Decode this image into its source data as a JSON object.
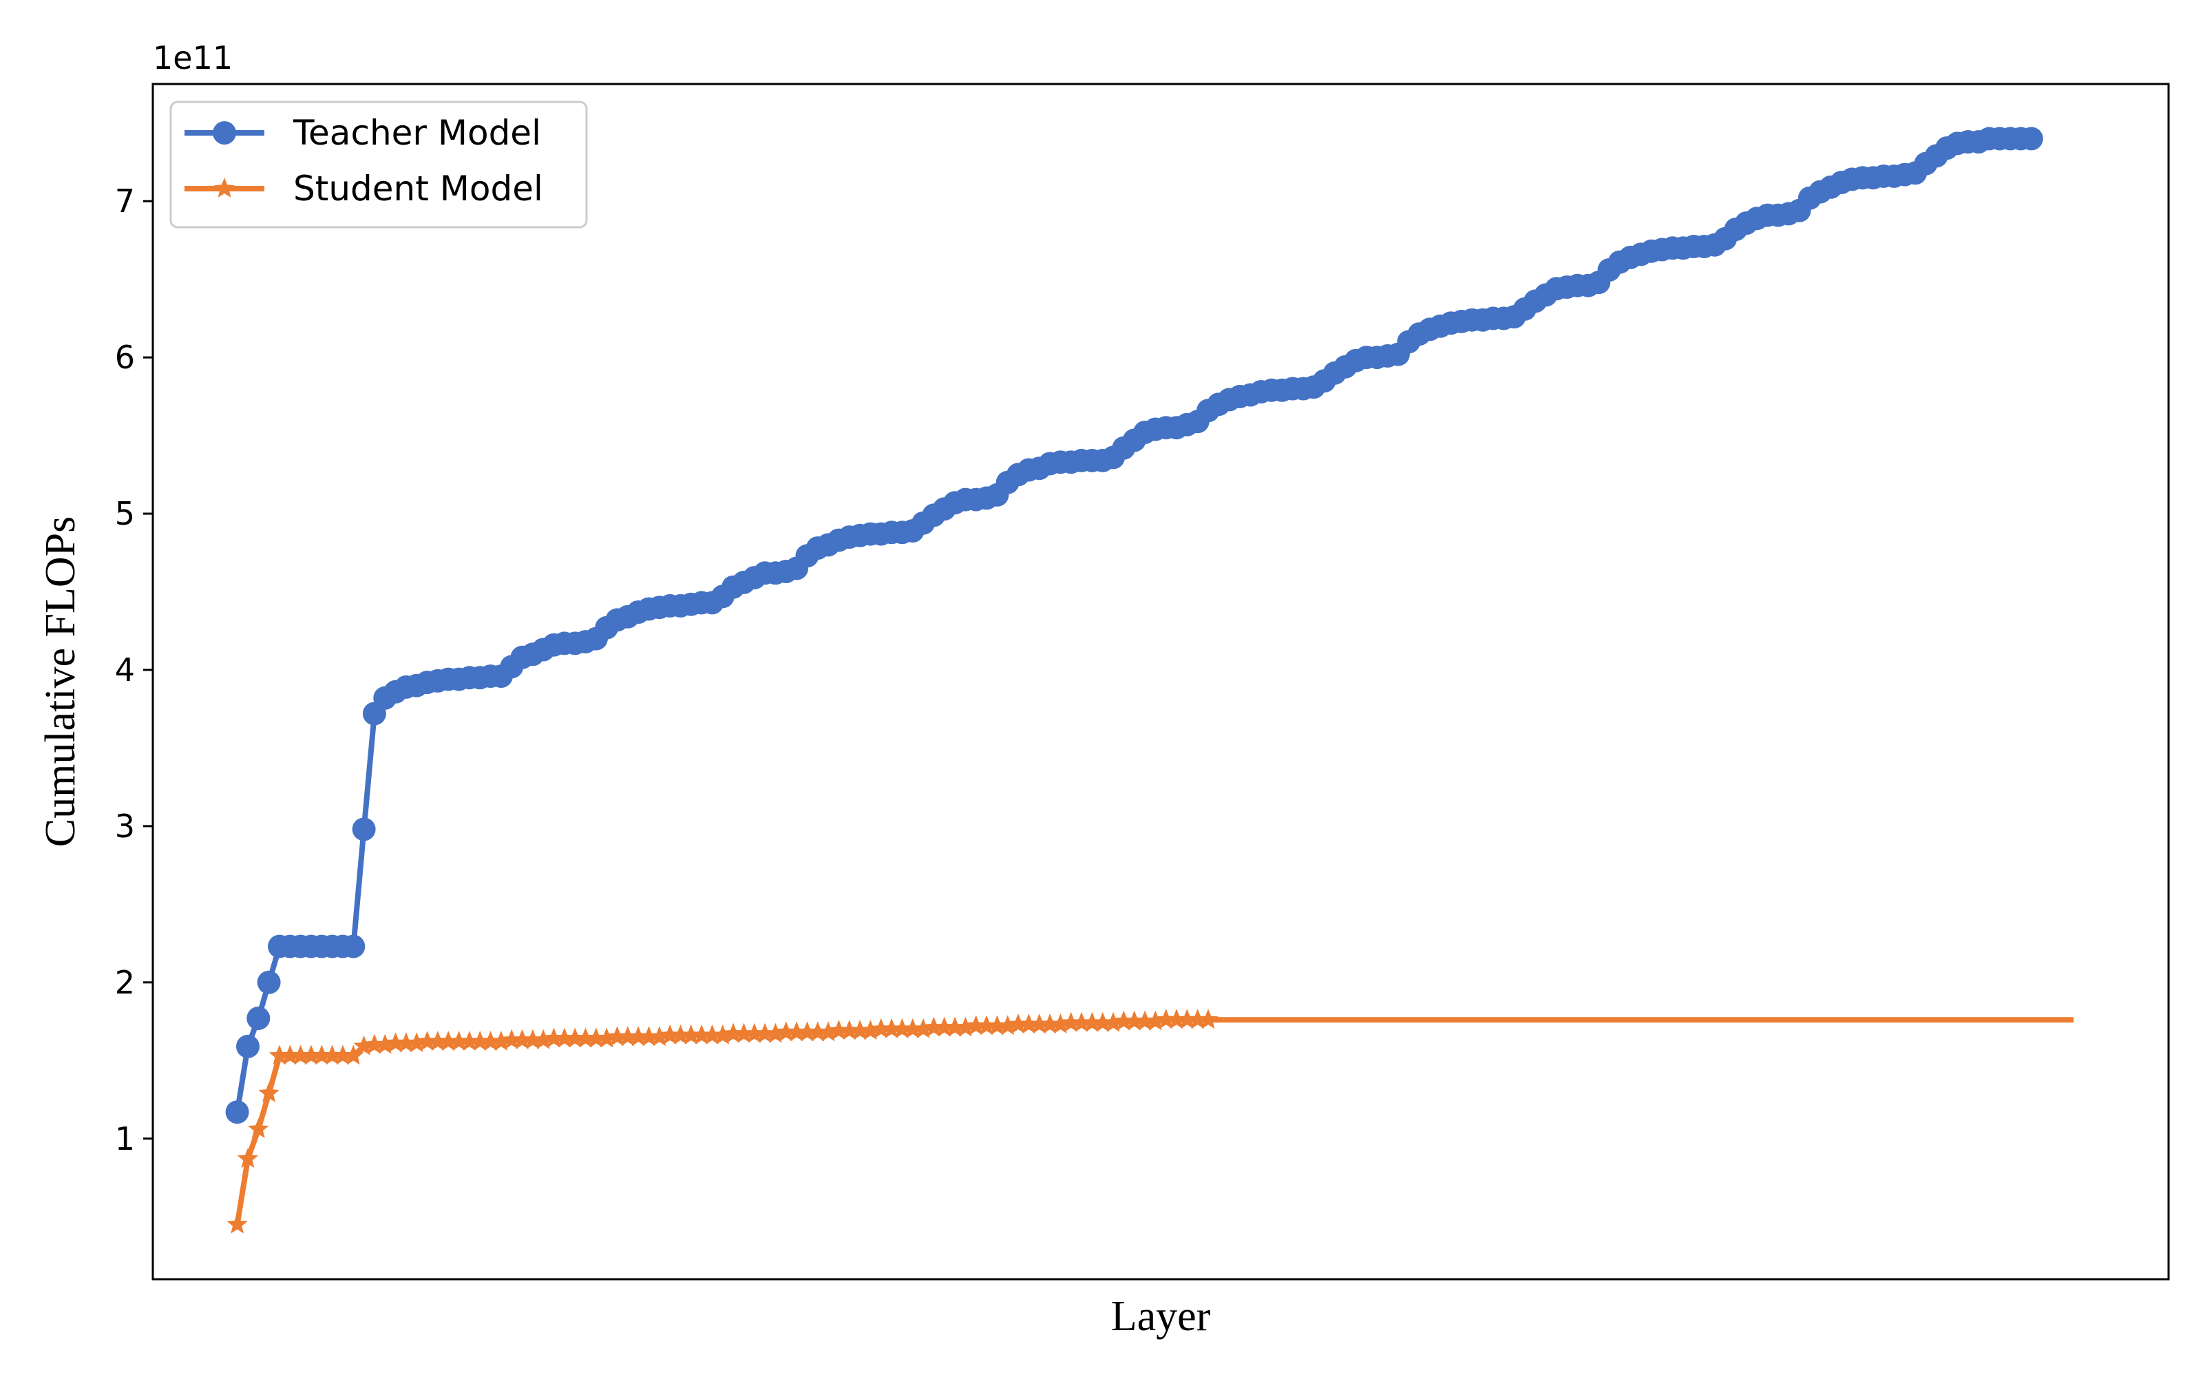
{
  "chart_data": {
    "type": "line",
    "title": "",
    "xlabel": "Layer",
    "ylabel": "Cumulative FLOPs",
    "y_offset_label": "1e11",
    "x_ticks_shown": false,
    "y_ticks": [
      1,
      2,
      3,
      4,
      5,
      6,
      7
    ],
    "ylim": [
      0.1,
      7.75
    ],
    "xlim": [
      -8,
      183
    ],
    "grid": false,
    "legend_position": "upper left",
    "series": [
      {
        "name": "Teacher Model",
        "color": "#4472C4",
        "marker": "circle",
        "values": [
          1.17,
          1.59,
          1.77,
          2.0,
          2.23,
          2.23,
          2.23,
          2.23,
          2.23,
          2.23,
          2.23,
          2.23,
          2.98,
          3.72,
          3.82,
          3.86,
          3.89,
          3.9,
          3.92,
          3.93,
          3.94,
          3.94,
          3.95,
          3.95,
          3.96,
          3.96,
          4.02,
          4.08,
          4.1,
          4.13,
          4.16,
          4.17,
          4.17,
          4.18,
          4.2,
          4.27,
          4.32,
          4.34,
          4.37,
          4.39,
          4.4,
          4.41,
          4.41,
          4.42,
          4.43,
          4.43,
          4.47,
          4.53,
          4.56,
          4.59,
          4.62,
          4.62,
          4.63,
          4.65,
          4.73,
          4.78,
          4.8,
          4.83,
          4.85,
          4.86,
          4.87,
          4.87,
          4.88,
          4.88,
          4.89,
          4.94,
          4.99,
          5.03,
          5.07,
          5.09,
          5.09,
          5.1,
          5.12,
          5.2,
          5.25,
          5.28,
          5.29,
          5.32,
          5.33,
          5.33,
          5.34,
          5.34,
          5.34,
          5.36,
          5.42,
          5.47,
          5.52,
          5.54,
          5.55,
          5.55,
          5.57,
          5.59,
          5.66,
          5.7,
          5.73,
          5.75,
          5.76,
          5.78,
          5.79,
          5.79,
          5.8,
          5.8,
          5.81,
          5.85,
          5.9,
          5.94,
          5.98,
          6.0,
          6.0,
          6.01,
          6.02,
          6.1,
          6.15,
          6.18,
          6.2,
          6.22,
          6.23,
          6.24,
          6.24,
          6.25,
          6.25,
          6.26,
          6.31,
          6.36,
          6.4,
          6.44,
          6.45,
          6.46,
          6.46,
          6.48,
          6.56,
          6.61,
          6.64,
          6.66,
          6.68,
          6.69,
          6.7,
          6.7,
          6.71,
          6.71,
          6.72,
          6.76,
          6.82,
          6.86,
          6.89,
          6.91,
          6.91,
          6.92,
          6.94,
          7.02,
          7.06,
          7.09,
          7.12,
          7.14,
          7.15,
          7.15,
          7.16,
          7.16,
          7.17,
          7.18,
          7.24,
          7.29,
          7.34,
          7.37,
          7.38,
          7.38,
          7.4,
          7.4,
          7.4,
          7.4,
          7.4
        ]
      },
      {
        "name": "Student Model",
        "color": "#ED7D31",
        "marker": "star",
        "values": [
          0.45,
          0.87,
          1.06,
          1.29,
          1.53,
          1.53,
          1.53,
          1.53,
          1.53,
          1.53,
          1.53,
          1.53,
          1.59,
          1.6,
          1.6,
          1.61,
          1.61,
          1.61,
          1.62,
          1.62,
          1.62,
          1.62,
          1.62,
          1.62,
          1.62,
          1.62,
          1.63,
          1.63,
          1.63,
          1.63,
          1.64,
          1.64,
          1.64,
          1.64,
          1.64,
          1.64,
          1.65,
          1.65,
          1.65,
          1.65,
          1.65,
          1.66,
          1.66,
          1.66,
          1.66,
          1.66,
          1.66,
          1.67,
          1.67,
          1.67,
          1.67,
          1.67,
          1.68,
          1.68,
          1.68,
          1.68,
          1.68,
          1.69,
          1.69,
          1.69,
          1.69,
          1.7,
          1.7,
          1.7,
          1.7,
          1.7,
          1.71,
          1.71,
          1.71,
          1.71,
          1.72,
          1.72,
          1.72,
          1.72,
          1.73,
          1.73,
          1.73,
          1.73,
          1.73,
          1.74,
          1.74,
          1.74,
          1.74,
          1.74,
          1.75,
          1.75,
          1.75,
          1.75,
          1.76,
          1.76,
          1.76,
          1.76,
          1.76,
          1.76,
          1.76,
          1.76,
          1.76,
          1.76,
          1.76,
          1.76,
          1.76,
          1.76,
          1.76,
          1.76,
          1.76,
          1.76,
          1.76,
          1.76,
          1.76,
          1.76,
          1.76,
          1.76,
          1.76,
          1.76,
          1.76,
          1.76,
          1.76,
          1.76,
          1.76,
          1.76,
          1.76,
          1.76,
          1.76,
          1.76,
          1.76,
          1.76,
          1.76,
          1.76,
          1.76,
          1.76,
          1.76,
          1.76,
          1.76,
          1.76,
          1.76,
          1.76,
          1.76,
          1.76,
          1.76,
          1.76,
          1.76,
          1.76,
          1.76,
          1.76,
          1.76,
          1.76,
          1.76,
          1.76,
          1.76,
          1.76,
          1.76,
          1.76,
          1.76,
          1.76,
          1.76,
          1.76,
          1.76,
          1.76,
          1.76,
          1.76,
          1.76,
          1.76,
          1.76,
          1.76,
          1.76,
          1.76,
          1.76,
          1.76,
          1.76,
          1.76,
          1.76,
          1.76,
          1.76,
          1.76,
          1.76
        ],
        "visible_markers_indices": [
          0,
          1,
          2,
          3,
          4,
          5,
          6,
          7,
          8,
          9,
          10,
          11,
          12,
          13,
          14,
          15,
          16,
          17,
          18,
          19,
          20,
          21,
          22,
          23,
          24,
          25,
          26,
          27,
          28,
          29,
          30,
          31,
          32,
          33,
          34,
          35,
          36,
          37,
          38,
          39,
          40,
          41,
          42,
          43,
          44,
          45,
          46,
          47,
          48,
          49,
          50,
          51,
          52,
          53,
          54,
          55,
          56,
          57,
          58,
          59,
          60,
          61,
          62,
          63,
          64,
          65,
          66,
          67,
          68,
          69,
          70,
          71,
          72,
          73,
          74,
          75,
          76,
          77,
          78,
          79,
          80,
          81,
          82,
          83,
          84,
          85,
          86,
          87,
          88,
          89,
          90,
          91,
          92,
          178,
          179
        ]
      }
    ]
  }
}
